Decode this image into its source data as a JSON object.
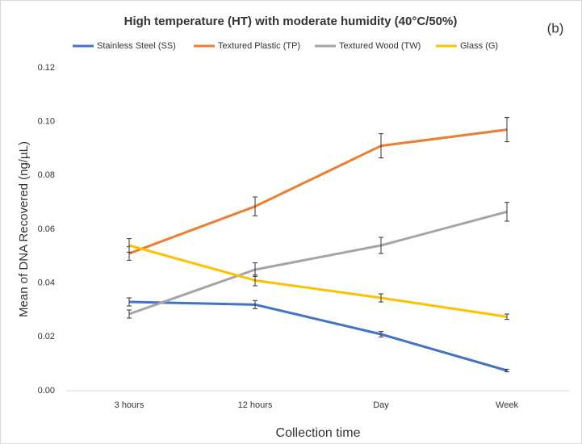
{
  "chart_data": {
    "type": "line",
    "title": "High temperature (HT) with moderate humidity (40°C/50%)",
    "annotation": "(b)",
    "x_label": "Collection time",
    "y_label": "Mean of DNA Recovered (ng/µL)",
    "categories": [
      "3 hours",
      "12 hours",
      "Day",
      "Week"
    ],
    "series": [
      {
        "name": "Stainless Steel (SS)",
        "color": "#4472c4",
        "values": [
          0.033,
          0.032,
          0.021,
          0.0075
        ],
        "errors": [
          0.0015,
          0.0015,
          0.001,
          0.0005
        ]
      },
      {
        "name": "Textured Plastic (TP)",
        "color": "#ed7d31",
        "values": [
          0.051,
          0.0685,
          0.091,
          0.097
        ],
        "errors": [
          0.0025,
          0.0035,
          0.0045,
          0.0045
        ]
      },
      {
        "name": "Textured Wood (TW)",
        "color": "#a5a5a5",
        "values": [
          0.0285,
          0.045,
          0.054,
          0.0665
        ],
        "errors": [
          0.0015,
          0.0025,
          0.003,
          0.0035
        ]
      },
      {
        "name": "Glass (G)",
        "color": "#ffc000",
        "values": [
          0.054,
          0.041,
          0.0345,
          0.0275
        ],
        "errors": [
          0.0025,
          0.002,
          0.0015,
          0.001
        ]
      }
    ],
    "ylim": [
      0,
      0.12
    ],
    "yticks": [
      {
        "value": 0,
        "label": "0.00"
      },
      0.02,
      0.04,
      0.06,
      0.08,
      {
        "value": 0.1,
        "label": "0.10"
      },
      0.12
    ],
    "grid": false
  }
}
